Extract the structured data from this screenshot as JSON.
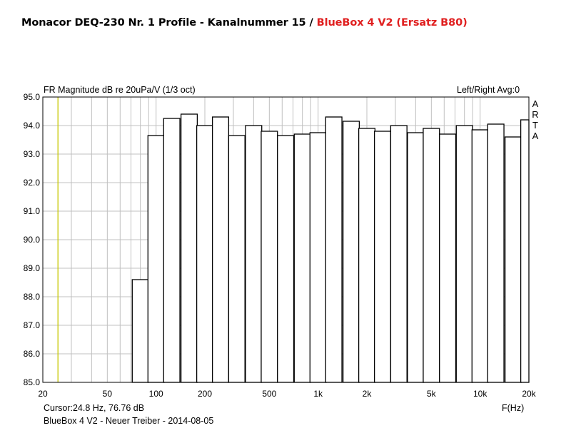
{
  "title": {
    "main": "Monacor DEQ-230 Nr. 1 Profile  -  Kanalnummer 15 / ",
    "highlight": "BlueBox 4 V2 (Ersatz B80)",
    "highlight_color": "#e02020"
  },
  "chart_header": {
    "left": "FR Magnitude dB re 20uPa/V (1/3 oct)",
    "right": "Left/Right  Avg:0"
  },
  "branding": [
    "A",
    "R",
    "T",
    "A"
  ],
  "footer": {
    "cursor": "Cursor:24.8 Hz, 76.76 dB",
    "info": "BlueBox 4 V2  -   Neuer Treiber  -  2014-08-05"
  },
  "colors": {
    "cursor_line": "#c8c800",
    "bars": "#000000",
    "grid": "#c0c0c0",
    "title_highlight": "#e02020"
  },
  "chart_data": {
    "type": "bar",
    "bar_style": "third-octave step outline",
    "title": "FR Magnitude dB re 20uPa/V (1/3 oct)",
    "xlabel": "F(Hz)",
    "ylabel": "",
    "x_scale": "log",
    "xlim": [
      20,
      20000
    ],
    "ylim": [
      85,
      95
    ],
    "grid": true,
    "cursor_x": 24.8,
    "xticks": [
      {
        "value": 20,
        "label": "20"
      },
      {
        "value": 50,
        "label": "50"
      },
      {
        "value": 100,
        "label": "100"
      },
      {
        "value": 200,
        "label": "200"
      },
      {
        "value": 500,
        "label": "500"
      },
      {
        "value": 1000,
        "label": "1k"
      },
      {
        "value": 2000,
        "label": "2k"
      },
      {
        "value": 5000,
        "label": "5k"
      },
      {
        "value": 10000,
        "label": "10k"
      },
      {
        "value": 20000,
        "label": "20k"
      }
    ],
    "yticks": [
      "85.0",
      "86.0",
      "87.0",
      "88.0",
      "89.0",
      "90.0",
      "91.0",
      "92.0",
      "93.0",
      "94.0",
      "95.0"
    ],
    "categories": [
      "80",
      "100",
      "125",
      "160",
      "200",
      "250",
      "315",
      "400",
      "500",
      "630",
      "800",
      "1k",
      "1.25k",
      "1.6k",
      "2k",
      "2.5k",
      "3.15k",
      "4k",
      "5k",
      "6.3k",
      "8k",
      "10k",
      "12.5k",
      "16k",
      "20k"
    ],
    "x": [
      80,
      100,
      125,
      160,
      200,
      250,
      315,
      400,
      500,
      630,
      800,
      1000,
      1250,
      1600,
      2000,
      2500,
      3150,
      4000,
      5000,
      6300,
      8000,
      10000,
      12500,
      16000,
      20000
    ],
    "values": [
      88.6,
      93.65,
      94.25,
      94.4,
      94.0,
      94.3,
      93.65,
      94.0,
      93.8,
      93.65,
      93.7,
      93.75,
      94.3,
      94.15,
      93.9,
      93.8,
      94.0,
      93.75,
      93.9,
      93.7,
      94.0,
      93.85,
      94.05,
      93.6,
      94.2
    ]
  }
}
